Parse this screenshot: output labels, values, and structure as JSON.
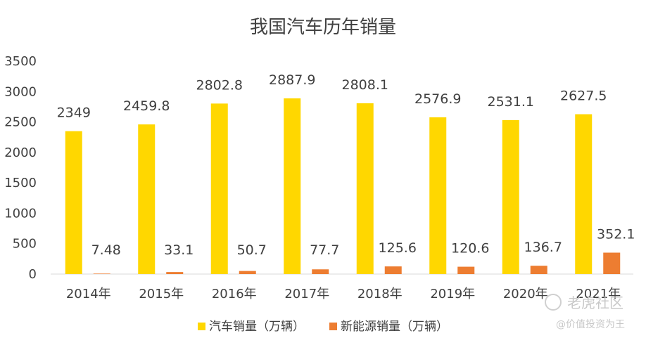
{
  "chart_data": {
    "type": "bar",
    "title": "我国汽车历年销量",
    "categories": [
      "2014年",
      "2015年",
      "2016年",
      "2017年",
      "2018年",
      "2019年",
      "2020年",
      "2021年"
    ],
    "series": [
      {
        "name": "汽车销量（万辆）",
        "color": "#FFD700",
        "values": [
          2349,
          2459.8,
          2802.8,
          2887.9,
          2808.1,
          2576.9,
          2531.1,
          2627.5
        ],
        "labels": [
          "2349",
          "2459.8",
          "2802.8",
          "2887.9",
          "2808.1",
          "2576.9",
          "2531.1",
          "2627.5"
        ]
      },
      {
        "name": "新能源销量（万辆）",
        "color": "#ED7D31",
        "values": [
          7.48,
          33.1,
          50.7,
          77.7,
          125.6,
          120.6,
          136.7,
          352.1
        ],
        "labels": [
          "7.48",
          "33.1",
          "50.7",
          "77.7",
          "125.6",
          "120.6",
          "136.7",
          "352.1"
        ]
      }
    ],
    "ylim": [
      0,
      3500
    ],
    "yticks": [
      "0",
      "500",
      "1000",
      "1500",
      "2000",
      "2500",
      "3000",
      "3500"
    ],
    "legend": "bottom",
    "grid": false
  },
  "watermark": {
    "brand": "老虎社区",
    "handle": "@价值投资为王"
  }
}
